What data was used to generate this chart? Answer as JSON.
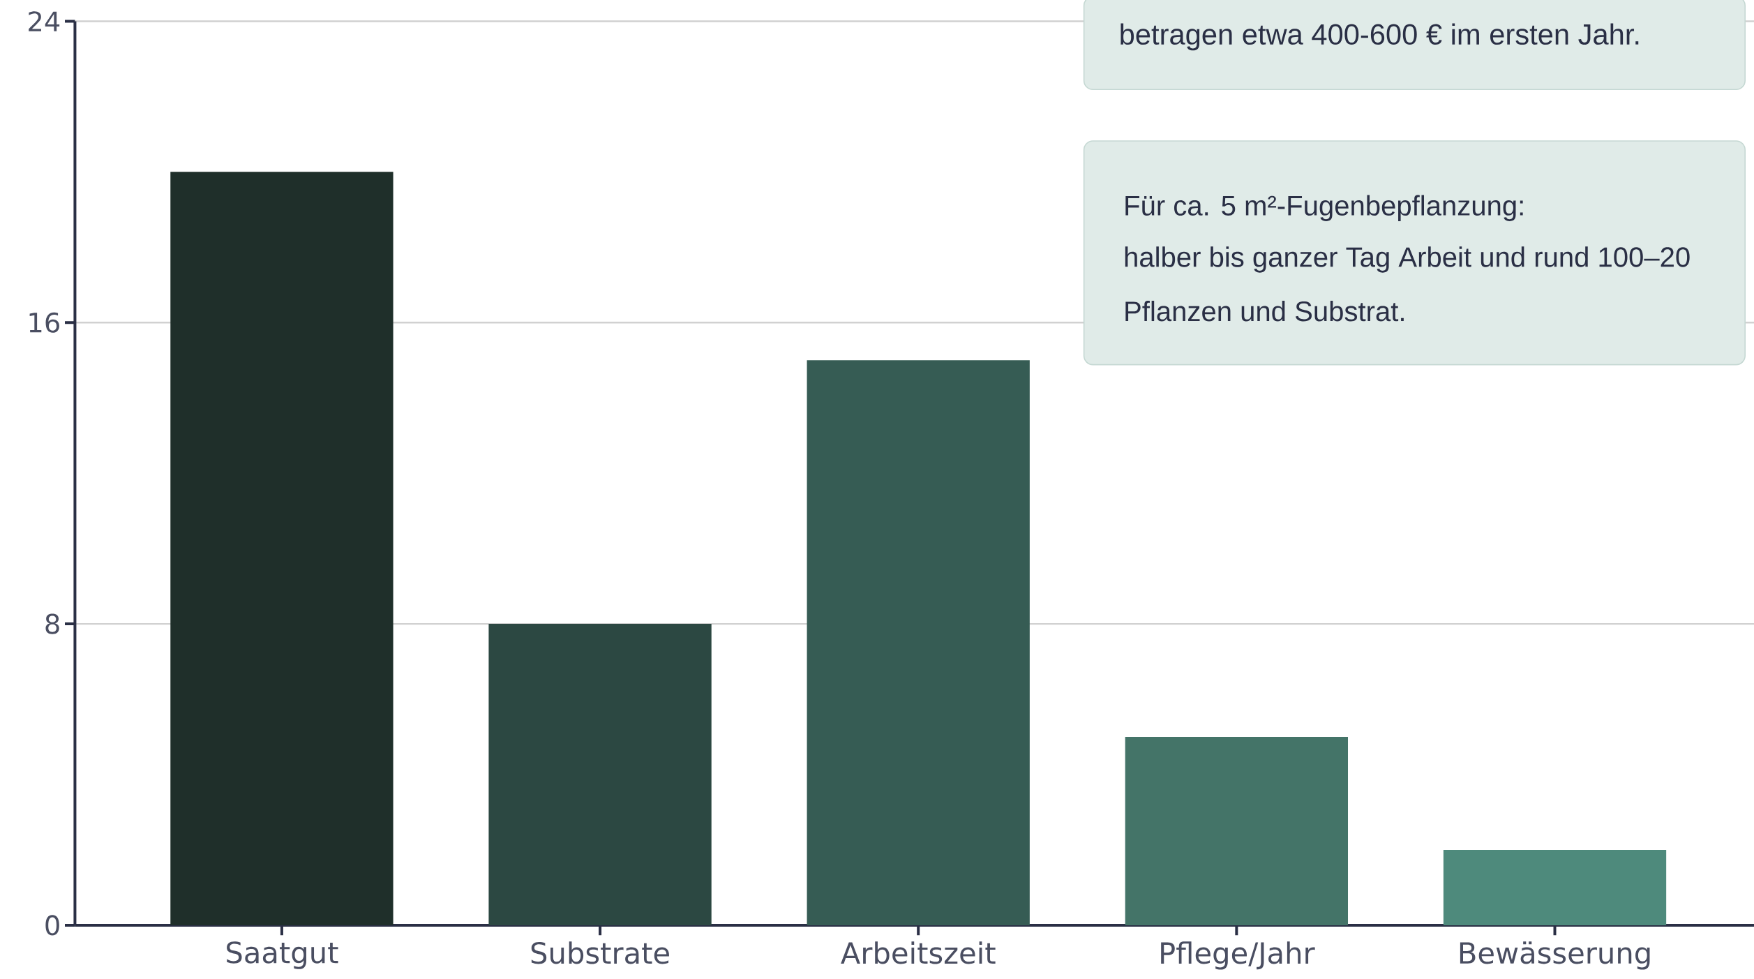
{
  "chart_data": {
    "type": "bar",
    "categories": [
      "Saatgut",
      "Substrate",
      "Arbeitszeit",
      "Pflege/Jahr",
      "Bewässerung"
    ],
    "values": [
      20,
      8,
      15,
      5,
      2
    ],
    "colors": [
      "#1f2f2a",
      "#2c4842",
      "#365c54",
      "#447468",
      "#4e8a7c"
    ],
    "ylim": [
      0,
      24
    ],
    "yticks": [
      0,
      8,
      16,
      24
    ],
    "grid": "y",
    "annotations": [
      "betragen etwa 400-600 € im ersten Jahr.",
      "Für ca. 5 m²-Fugenbepflanzung:",
      "halber bis ganzer Tag Arbeit und rund 100–20",
      "Pflanzen und Substrat."
    ]
  }
}
